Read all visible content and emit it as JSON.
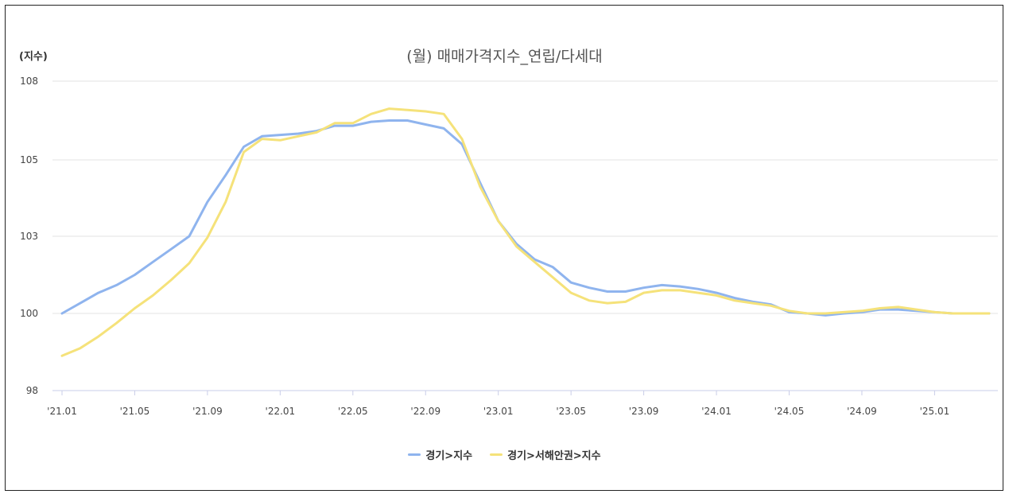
{
  "chart_data": {
    "type": "line",
    "title": "(월) 매매가격지수_연립/다세대",
    "ylabel": "(지수)",
    "xlabel": "",
    "ylim": [
      98,
      109
    ],
    "yticks": [
      98,
      100,
      103,
      105,
      108
    ],
    "xticks": [
      "'21.01",
      "'21.05",
      "'21.09",
      "'22.01",
      "'22.05",
      "'22.09",
      "'23.01",
      "'23.05",
      "'23.09",
      "'24.01",
      "'24.05",
      "'24.09",
      "'25.01"
    ],
    "x": [
      "'21.01",
      "'21.02",
      "'21.03",
      "'21.04",
      "'21.05",
      "'21.06",
      "'21.07",
      "'21.08",
      "'21.09",
      "'21.10",
      "'21.11",
      "'21.12",
      "'22.01",
      "'22.02",
      "'22.03",
      "'22.04",
      "'22.05",
      "'22.06",
      "'22.07",
      "'22.08",
      "'22.09",
      "'22.10",
      "'22.11",
      "'22.12",
      "'23.01",
      "'23.02",
      "'23.03",
      "'23.04",
      "'23.05",
      "'23.06",
      "'23.07",
      "'23.08",
      "'23.09",
      "'23.10",
      "'23.11",
      "'23.12",
      "'24.01",
      "'24.02",
      "'24.03",
      "'24.04",
      "'24.05",
      "'24.06",
      "'24.07",
      "'24.08",
      "'24.09",
      "'24.10",
      "'24.11",
      "'24.12",
      "'25.01",
      "'25.02",
      "'25.03",
      "'25.04"
    ],
    "series": [
      {
        "name": "경기>지수",
        "color": "#8fb4ee",
        "values": [
          100.0,
          100.4,
          100.8,
          101.1,
          101.5,
          102.0,
          102.5,
          103.0,
          103.9,
          104.6,
          105.5,
          105.9,
          105.95,
          106.0,
          106.1,
          106.3,
          106.3,
          106.45,
          106.5,
          106.5,
          106.35,
          106.2,
          105.6,
          104.4,
          103.4,
          102.7,
          102.1,
          101.8,
          101.2,
          101.0,
          100.85,
          100.85,
          101.0,
          101.1,
          101.05,
          100.95,
          100.8,
          100.6,
          100.45,
          100.35,
          100.05,
          100.0,
          99.95,
          100.0,
          100.05,
          100.15,
          100.15,
          100.1,
          100.05,
          100.0,
          100.0,
          100.0
        ]
      },
      {
        "name": "경기>서해안권>지수",
        "color": "#f5e27a",
        "values": [
          98.9,
          99.1,
          99.4,
          99.75,
          100.2,
          100.7,
          101.3,
          101.95,
          102.95,
          103.9,
          105.3,
          105.8,
          105.75,
          105.9,
          106.05,
          106.4,
          106.4,
          106.75,
          106.95,
          106.9,
          106.85,
          106.75,
          105.8,
          104.3,
          103.4,
          102.6,
          102.0,
          101.4,
          100.8,
          100.5,
          100.4,
          100.45,
          100.8,
          100.9,
          100.9,
          100.8,
          100.7,
          100.5,
          100.4,
          100.3,
          100.1,
          100.0,
          100.0,
          100.05,
          100.1,
          100.2,
          100.25,
          100.15,
          100.05,
          100.0,
          100.0,
          100.0
        ]
      }
    ],
    "grid": true,
    "legend_position": "bottom"
  }
}
